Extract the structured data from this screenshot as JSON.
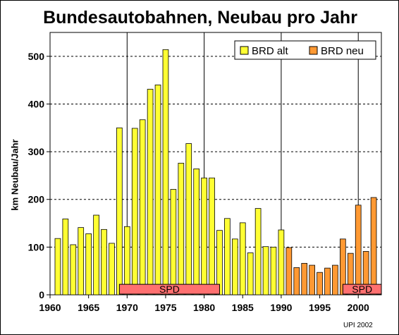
{
  "chart_data": {
    "type": "bar",
    "title": "Bundesautobahnen, Neubau pro Jahr",
    "ylabel": "km Neubau/Jahr",
    "xlabel": "",
    "xlim": [
      1960,
      2003
    ],
    "ylim": [
      0,
      550
    ],
    "x_ticks": [
      1960,
      1965,
      1970,
      1975,
      1980,
      1985,
      1990,
      1995,
      2000
    ],
    "y_ticks": [
      0,
      100,
      200,
      300,
      400,
      500
    ],
    "grid": "horizontal dashed at y ticks; vertical solid at 1970, 1980, 1990, 2000",
    "legend_position": "top-right",
    "series": [
      {
        "name": "BRD alt",
        "color": "#ffff33",
        "points": [
          {
            "x": 1961,
            "y": 118
          },
          {
            "x": 1962,
            "y": 159
          },
          {
            "x": 1963,
            "y": 105
          },
          {
            "x": 1964,
            "y": 141
          },
          {
            "x": 1965,
            "y": 128
          },
          {
            "x": 1966,
            "y": 167
          },
          {
            "x": 1967,
            "y": 137
          },
          {
            "x": 1968,
            "y": 108
          },
          {
            "x": 1969,
            "y": 350
          },
          {
            "x": 1970,
            "y": 143
          },
          {
            "x": 1971,
            "y": 349
          },
          {
            "x": 1972,
            "y": 367
          },
          {
            "x": 1973,
            "y": 431
          },
          {
            "x": 1974,
            "y": 440
          },
          {
            "x": 1975,
            "y": 514
          },
          {
            "x": 1976,
            "y": 221
          },
          {
            "x": 1977,
            "y": 276
          },
          {
            "x": 1978,
            "y": 317
          },
          {
            "x": 1979,
            "y": 264
          },
          {
            "x": 1980,
            "y": 245
          },
          {
            "x": 1981,
            "y": 245
          },
          {
            "x": 1982,
            "y": 135
          },
          {
            "x": 1983,
            "y": 160
          },
          {
            "x": 1984,
            "y": 117
          },
          {
            "x": 1985,
            "y": 151
          },
          {
            "x": 1986,
            "y": 88
          },
          {
            "x": 1987,
            "y": 181
          },
          {
            "x": 1988,
            "y": 101
          },
          {
            "x": 1989,
            "y": 100
          },
          {
            "x": 1990,
            "y": 136
          }
        ]
      },
      {
        "name": "BRD neu",
        "color": "#ff9933",
        "points": [
          {
            "x": 1991,
            "y": 99
          },
          {
            "x": 1992,
            "y": 57
          },
          {
            "x": 1993,
            "y": 66
          },
          {
            "x": 1994,
            "y": 62
          },
          {
            "x": 1995,
            "y": 47
          },
          {
            "x": 1996,
            "y": 56
          },
          {
            "x": 1997,
            "y": 62
          },
          {
            "x": 1998,
            "y": 117
          },
          {
            "x": 1999,
            "y": 87
          },
          {
            "x": 2000,
            "y": 188
          },
          {
            "x": 2001,
            "y": 91
          },
          {
            "x": 2002,
            "y": 204
          }
        ]
      }
    ],
    "annotations": [
      {
        "label": "SPD",
        "x_from": 1969,
        "x_to": 1982,
        "color": "#ff7070"
      },
      {
        "label": "SPD",
        "x_from": 1998,
        "x_to": 2003,
        "color": "#ff7070"
      }
    ]
  },
  "credit": "UPI 2002"
}
